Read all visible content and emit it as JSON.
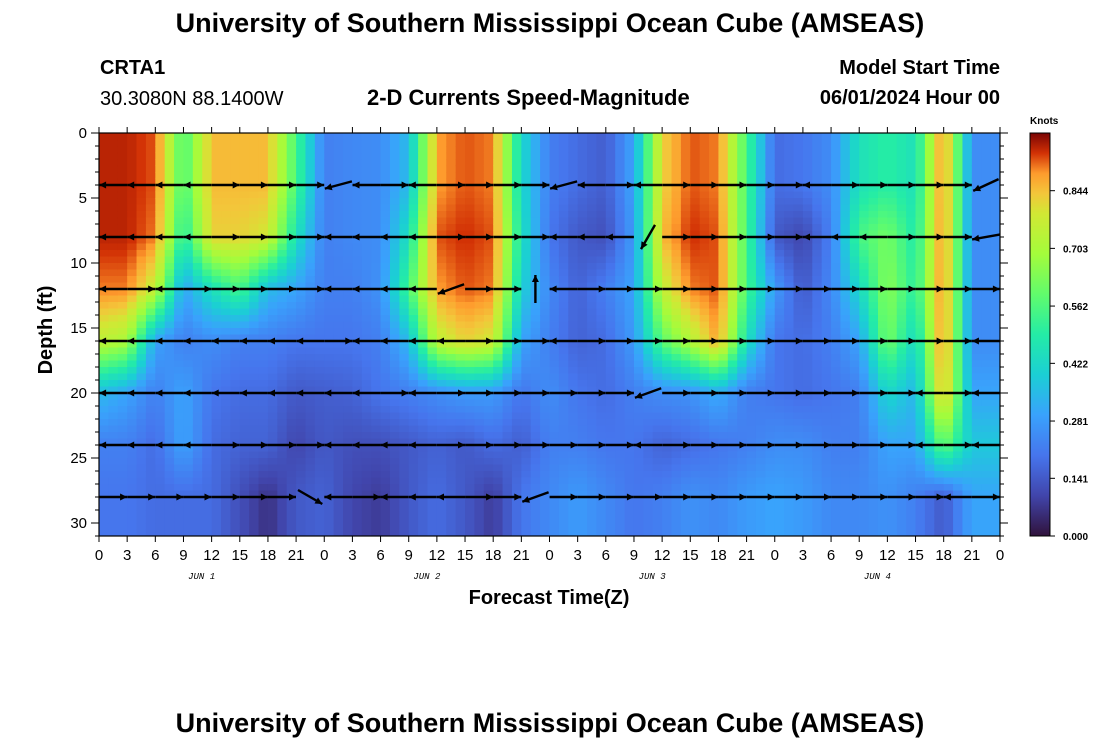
{
  "page": {
    "title_top": "University of Southern Mississippi Ocean Cube (AMSEAS)",
    "title_bottom": "University of Southern Mississippi Ocean Cube (AMSEAS)",
    "station": "CRTA1",
    "coords": "30.3080N  88.1400W",
    "subtitle": "2-D Currents Speed-Magnitude",
    "model_label": "Model Start Time",
    "model_time": "06/01/2024 Hour 00"
  },
  "chart_data": {
    "type": "heatmap",
    "title": "2-D Currents Speed-Magnitude",
    "xlabel": "Forecast Time(Z)",
    "ylabel": "Depth (ft)",
    "xlim": [
      0,
      96
    ],
    "ylim": [
      0,
      31
    ],
    "x_tick_labels": [
      "0",
      "3",
      "6",
      "9",
      "12",
      "15",
      "18",
      "21",
      "0",
      "3",
      "6",
      "9",
      "12",
      "15",
      "18",
      "21",
      "0",
      "3",
      "6",
      "9",
      "12",
      "15",
      "18",
      "21",
      "0",
      "3",
      "6",
      "9",
      "12",
      "15",
      "18",
      "21",
      "0"
    ],
    "y_ticks": [
      0,
      5,
      10,
      15,
      20,
      25,
      30
    ],
    "day_labels": [
      {
        "label": "JUN 1",
        "hour": 12
      },
      {
        "label": "JUN 2",
        "hour": 36
      },
      {
        "label": "JUN 3",
        "hour": 60
      },
      {
        "label": "JUN 4",
        "hour": 84
      }
    ],
    "colorbar": {
      "title": "Knots",
      "ticks": [
        "0.844",
        "0.703",
        "0.562",
        "0.422",
        "0.281",
        "0.141",
        "0.000"
      ],
      "min": 0.0,
      "max": 0.985
    },
    "vector_depths": [
      4,
      8,
      12,
      16,
      20,
      24,
      28
    ],
    "arrow_directions_deg": [
      [
        180,
        180,
        180,
        180,
        0,
        0,
        0,
        0,
        195,
        180,
        0,
        180,
        0,
        0,
        0,
        0,
        195,
        180,
        0,
        180,
        0,
        0,
        0,
        0,
        0,
        180,
        0,
        0,
        0,
        0,
        0,
        205
      ],
      [
        180,
        180,
        180,
        180,
        0,
        0,
        0,
        0,
        180,
        180,
        180,
        180,
        0,
        0,
        0,
        0,
        180,
        180,
        180,
        240,
        0,
        0,
        0,
        0,
        0,
        180,
        180,
        180,
        0,
        0,
        0,
        190
      ],
      [
        180,
        0,
        180,
        0,
        0,
        0,
        0,
        0,
        180,
        180,
        180,
        180,
        200,
        0,
        0,
        90,
        180,
        0,
        0,
        0,
        0,
        0,
        0,
        0,
        0,
        0,
        0,
        0,
        0,
        0,
        0,
        0
      ],
      [
        180,
        180,
        180,
        180,
        180,
        180,
        180,
        180,
        0,
        180,
        180,
        180,
        180,
        0,
        0,
        0,
        180,
        0,
        0,
        0,
        0,
        0,
        0,
        0,
        0,
        0,
        0,
        0,
        0,
        0,
        0,
        180
      ],
      [
        180,
        180,
        180,
        180,
        180,
        180,
        180,
        180,
        180,
        180,
        0,
        180,
        0,
        0,
        0,
        0,
        0,
        0,
        0,
        200,
        0,
        0,
        0,
        0,
        0,
        0,
        0,
        0,
        0,
        180,
        0,
        180
      ],
      [
        180,
        180,
        180,
        180,
        0,
        0,
        0,
        0,
        180,
        180,
        180,
        180,
        0,
        0,
        0,
        0,
        0,
        0,
        0,
        180,
        0,
        0,
        0,
        0,
        0,
        0,
        0,
        0,
        0,
        180,
        0,
        180
      ],
      [
        0,
        0,
        0,
        0,
        0,
        0,
        0,
        330,
        180,
        0,
        180,
        180,
        180,
        0,
        0,
        200,
        0,
        0,
        0,
        0,
        0,
        0,
        0,
        0,
        0,
        0,
        0,
        0,
        0,
        0,
        180,
        0
      ]
    ],
    "speed_knots": [
      [
        0.95,
        0.95,
        0.92,
        0.55,
        0.85,
        0.85,
        0.85,
        0.55,
        0.22,
        0.24,
        0.25,
        0.35,
        0.88,
        0.92,
        0.9,
        0.42,
        0.22,
        0.18,
        0.15,
        0.3,
        0.82,
        0.92,
        0.9,
        0.55,
        0.18,
        0.2,
        0.25,
        0.45,
        0.5,
        0.45,
        0.92,
        0.25
      ],
      [
        0.95,
        0.95,
        0.9,
        0.48,
        0.82,
        0.82,
        0.78,
        0.45,
        0.22,
        0.24,
        0.25,
        0.45,
        0.92,
        0.94,
        0.92,
        0.45,
        0.2,
        0.14,
        0.12,
        0.28,
        0.85,
        0.94,
        0.92,
        0.55,
        0.14,
        0.1,
        0.22,
        0.55,
        0.62,
        0.48,
        0.92,
        0.25
      ],
      [
        0.9,
        0.9,
        0.75,
        0.3,
        0.45,
        0.55,
        0.35,
        0.3,
        0.22,
        0.22,
        0.26,
        0.55,
        0.88,
        0.92,
        0.9,
        0.4,
        0.24,
        0.16,
        0.22,
        0.3,
        0.75,
        0.9,
        0.92,
        0.55,
        0.28,
        0.14,
        0.24,
        0.42,
        0.65,
        0.5,
        0.92,
        0.25
      ],
      [
        0.75,
        0.7,
        0.3,
        0.22,
        0.25,
        0.22,
        0.22,
        0.2,
        0.2,
        0.2,
        0.22,
        0.35,
        0.75,
        0.82,
        0.78,
        0.3,
        0.22,
        0.16,
        0.18,
        0.28,
        0.58,
        0.72,
        0.88,
        0.45,
        0.2,
        0.18,
        0.22,
        0.3,
        0.62,
        0.42,
        0.92,
        0.25
      ],
      [
        0.35,
        0.3,
        0.22,
        0.3,
        0.2,
        0.18,
        0.18,
        0.14,
        0.15,
        0.16,
        0.2,
        0.22,
        0.25,
        0.28,
        0.28,
        0.2,
        0.25,
        0.2,
        0.18,
        0.22,
        0.25,
        0.26,
        0.32,
        0.22,
        0.2,
        0.18,
        0.2,
        0.22,
        0.42,
        0.34,
        0.88,
        0.3
      ],
      [
        0.22,
        0.22,
        0.18,
        0.3,
        0.18,
        0.16,
        0.16,
        0.1,
        0.14,
        0.12,
        0.12,
        0.14,
        0.16,
        0.14,
        0.18,
        0.15,
        0.22,
        0.22,
        0.2,
        0.2,
        0.16,
        0.18,
        0.2,
        0.22,
        0.25,
        0.25,
        0.22,
        0.22,
        0.3,
        0.3,
        0.6,
        0.38
      ],
      [
        0.2,
        0.2,
        0.18,
        0.18,
        0.18,
        0.12,
        0.06,
        0.14,
        0.16,
        0.1,
        0.08,
        0.14,
        0.18,
        0.14,
        0.08,
        0.2,
        0.24,
        0.28,
        0.24,
        0.2,
        0.22,
        0.26,
        0.24,
        0.28,
        0.3,
        0.28,
        0.24,
        0.24,
        0.26,
        0.22,
        0.14,
        0.3
      ]
    ]
  }
}
